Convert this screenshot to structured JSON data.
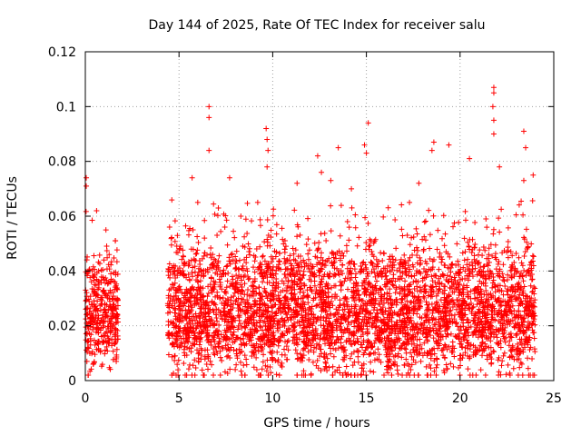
{
  "chart_data": {
    "type": "scatter",
    "title": "Day 144 of 2025, Rate Of TEC Index for receiver salu",
    "xlabel": "GPS time / hours",
    "ylabel": "ROTI / TECUs",
    "xlim": [
      0,
      25
    ],
    "ylim": [
      0,
      0.12
    ],
    "x_ticks": [
      0,
      5,
      10,
      15,
      20,
      25
    ],
    "x_tick_labels": [
      "0",
      "5",
      "10",
      "15",
      "20",
      "25"
    ],
    "y_ticks": [
      0,
      0.02,
      0.04,
      0.06,
      0.08,
      0.1,
      0.12
    ],
    "y_tick_labels": [
      "0",
      "0.02",
      "0.04",
      "0.06",
      "0.08",
      "0.1",
      "0.12"
    ],
    "grid": true,
    "marker": "+",
    "color": "#ff0000",
    "series": [
      {
        "name": "ROTI",
        "segments": [
          {
            "x_start": 0.0,
            "x_end": 1.75,
            "typical_min": 0.01,
            "typical_max": 0.035
          },
          {
            "x_start": 4.4,
            "x_end": 24.0,
            "typical_min": 0.008,
            "typical_max": 0.038
          }
        ],
        "outliers": [
          {
            "x": 0.05,
            "y": 0.074
          },
          {
            "x": 0.05,
            "y": 0.071
          },
          {
            "x": 0.6,
            "y": 0.062
          },
          {
            "x": 1.1,
            "y": 0.055
          },
          {
            "x": 1.6,
            "y": 0.051
          },
          {
            "x": 1.65,
            "y": 0.007
          },
          {
            "x": 5.7,
            "y": 0.074
          },
          {
            "x": 6.0,
            "y": 0.065
          },
          {
            "x": 6.6,
            "y": 0.1
          },
          {
            "x": 6.6,
            "y": 0.096
          },
          {
            "x": 6.6,
            "y": 0.084
          },
          {
            "x": 7.1,
            "y": 0.063
          },
          {
            "x": 7.7,
            "y": 0.074
          },
          {
            "x": 8.3,
            "y": 0.06
          },
          {
            "x": 9.2,
            "y": 0.065
          },
          {
            "x": 9.65,
            "y": 0.092
          },
          {
            "x": 9.7,
            "y": 0.088
          },
          {
            "x": 9.75,
            "y": 0.084
          },
          {
            "x": 9.7,
            "y": 0.078
          },
          {
            "x": 11.3,
            "y": 0.072
          },
          {
            "x": 12.4,
            "y": 0.082
          },
          {
            "x": 12.6,
            "y": 0.076
          },
          {
            "x": 13.1,
            "y": 0.073
          },
          {
            "x": 13.5,
            "y": 0.085
          },
          {
            "x": 14.2,
            "y": 0.07
          },
          {
            "x": 14.9,
            "y": 0.086
          },
          {
            "x": 15.1,
            "y": 0.094
          },
          {
            "x": 15.0,
            "y": 0.083
          },
          {
            "x": 17.3,
            "y": 0.065
          },
          {
            "x": 17.8,
            "y": 0.072
          },
          {
            "x": 18.6,
            "y": 0.087
          },
          {
            "x": 18.5,
            "y": 0.084
          },
          {
            "x": 19.4,
            "y": 0.086
          },
          {
            "x": 20.5,
            "y": 0.081
          },
          {
            "x": 21.8,
            "y": 0.107
          },
          {
            "x": 21.8,
            "y": 0.105
          },
          {
            "x": 21.75,
            "y": 0.1
          },
          {
            "x": 21.8,
            "y": 0.095
          },
          {
            "x": 21.8,
            "y": 0.09
          },
          {
            "x": 22.1,
            "y": 0.078
          },
          {
            "x": 23.4,
            "y": 0.091
          },
          {
            "x": 23.5,
            "y": 0.085
          },
          {
            "x": 23.4,
            "y": 0.073
          },
          {
            "x": 23.9,
            "y": 0.075
          },
          {
            "x": 8.0,
            "y": 0.004
          },
          {
            "x": 10.5,
            "y": 0.005
          },
          {
            "x": 18.2,
            "y": 0.005
          },
          {
            "x": 23.3,
            "y": 0.006
          }
        ]
      }
    ]
  }
}
